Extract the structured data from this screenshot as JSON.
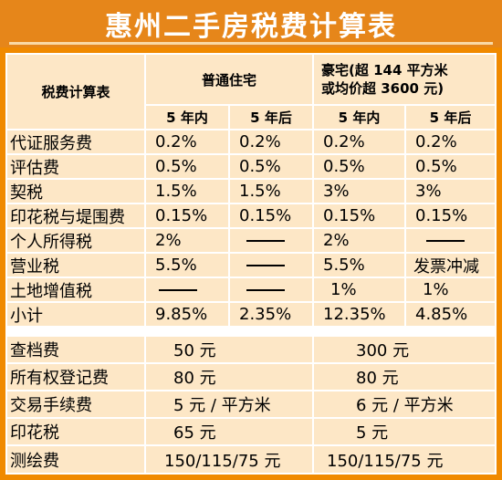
{
  "title": "惠州二手房税费计算表",
  "header": {
    "corner": "税费计算表",
    "col_normal": "普通住宅",
    "col_luxury_line1": "豪宅(超 144 平方米",
    "col_luxury_line2": "或均价超 3600 元)",
    "sub_within5": "5 年内",
    "sub_after5": "5 年后"
  },
  "rows": [
    {
      "label": "代证服务费",
      "n_in": "0.2%",
      "n_out": "0.2%",
      "l_in": "0.2%",
      "l_out": "0.2%"
    },
    {
      "label": "评估费",
      "n_in": "0.5%",
      "n_out": "0.5%",
      "l_in": "0.5%",
      "l_out": "0.5%"
    },
    {
      "label": "契税",
      "n_in": "1.5%",
      "n_out": "1.5%",
      "l_in": "3%",
      "l_out": "3%"
    },
    {
      "label": "印花税与堤围费",
      "n_in": "0.15%",
      "n_out": "0.15%",
      "l_in": "0.15%",
      "l_out": "0.15%"
    },
    {
      "label": "个人所得税",
      "n_in": "2%",
      "n_out": "",
      "l_in": "2%",
      "l_out": ""
    },
    {
      "label": "营业税",
      "n_in": "5.5%",
      "n_out": "",
      "l_in": "5.5%",
      "l_out": "发票冲减"
    },
    {
      "label": "土地增值税",
      "n_in": "",
      "n_out": "",
      "l_in": "1%",
      "l_out": "1%"
    },
    {
      "label": "小计",
      "n_in": "9.85%",
      "n_out": "2.35%",
      "l_in": "12.35%",
      "l_out": "4.85%"
    }
  ],
  "fees": [
    {
      "label": "查档费",
      "normal": "50 元",
      "luxury": "300 元"
    },
    {
      "label": "所有权登记费",
      "normal": "80 元",
      "luxury": "80 元"
    },
    {
      "label": "交易手续费",
      "normal": "5 元 / 平方米",
      "luxury": "6 元 / 平方米"
    },
    {
      "label": "印花税",
      "normal": "65 元",
      "luxury": "5 元"
    },
    {
      "label": "测绘费",
      "normal": "150/115/75 元",
      "luxury": "150/115/75 元"
    }
  ]
}
